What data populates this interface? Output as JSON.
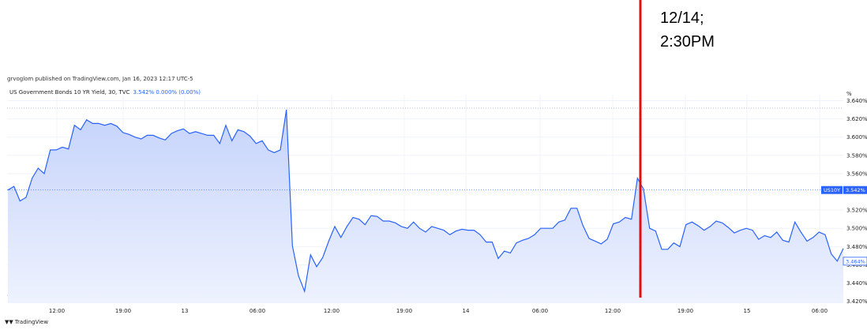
{
  "annotation": {
    "line1": "12/14;",
    "line2": "2:30PM",
    "color": "#e01010"
  },
  "header": {
    "published": "grvoglom published on TradingView.com, Jan 16, 2023 12:17 UTC-5",
    "legend_title": "US Government Bonds 10 YR Yield, 30, TVC",
    "legend_values": "3.542%  0.000% (0.00%)"
  },
  "footer": {
    "logo_text": "TradingView"
  },
  "chart_data": {
    "type": "area",
    "title": "US Government Bonds 10 YR Yield, 30, TVC",
    "ylabel": "%",
    "ylim": [
      3.418,
      3.643
    ],
    "y_ticks": [
      "3.640%",
      "3.620%",
      "3.600%",
      "3.580%",
      "3.560%",
      "3.540%",
      "3.520%",
      "3.500%",
      "3.480%",
      "3.460%",
      "3.440%",
      "3.420%"
    ],
    "x_tick_labels": [
      "12:00",
      "19:00",
      "13",
      "06:00",
      "12:00",
      "19:00",
      "14",
      "06:00",
      "12:00",
      "19:00",
      "15",
      "06:00"
    ],
    "price_label": "US10Y",
    "last_value_label": "3.542%",
    "current_price_label": "3.464%",
    "series": [
      {
        "values": [
          3.542,
          3.546,
          3.53,
          3.534,
          3.555,
          3.566,
          3.56,
          3.586,
          3.586,
          3.589,
          3.587,
          3.613,
          3.608,
          3.619,
          3.615,
          3.615,
          3.613,
          3.615,
          3.612,
          3.605,
          3.603,
          3.6,
          3.598,
          3.602,
          3.602,
          3.599,
          3.597,
          3.604,
          3.607,
          3.609,
          3.604,
          3.606,
          3.604,
          3.602,
          3.602,
          3.593,
          3.613,
          3.596,
          3.608,
          3.606,
          3.601,
          3.593,
          3.596,
          3.586,
          3.583,
          3.586,
          3.63,
          3.481,
          3.448,
          3.431,
          3.471,
          3.458,
          3.468,
          3.486,
          3.502,
          3.49,
          3.502,
          3.512,
          3.51,
          3.504,
          3.514,
          3.513,
          3.508,
          3.508,
          3.506,
          3.502,
          3.5,
          3.507,
          3.5,
          3.496,
          3.502,
          3.5,
          3.498,
          3.493,
          3.497,
          3.499,
          3.498,
          3.498,
          3.493,
          3.485,
          3.485,
          3.467,
          3.475,
          3.473,
          3.484,
          3.487,
          3.489,
          3.493,
          3.5,
          3.5,
          3.5,
          3.507,
          3.509,
          3.522,
          3.522,
          3.503,
          3.489,
          3.486,
          3.483,
          3.488,
          3.505,
          3.507,
          3.512,
          3.51,
          3.555,
          3.543,
          3.5,
          3.497,
          3.477,
          3.477,
          3.484,
          3.48,
          3.504,
          3.507,
          3.503,
          3.498,
          3.502,
          3.508,
          3.506,
          3.501,
          3.495,
          3.498,
          3.5,
          3.498,
          3.488,
          3.492,
          3.49,
          3.496,
          3.487,
          3.485,
          3.507,
          3.496,
          3.486,
          3.49,
          3.496,
          3.493,
          3.472,
          3.464,
          3.478
        ]
      }
    ],
    "colors": {
      "line": "#2962ff",
      "fill_top": "#c5d3fb",
      "fill_bottom": "#eef2fe",
      "grid": "#f0f3fa",
      "label_bg": "#2962ff"
    }
  }
}
